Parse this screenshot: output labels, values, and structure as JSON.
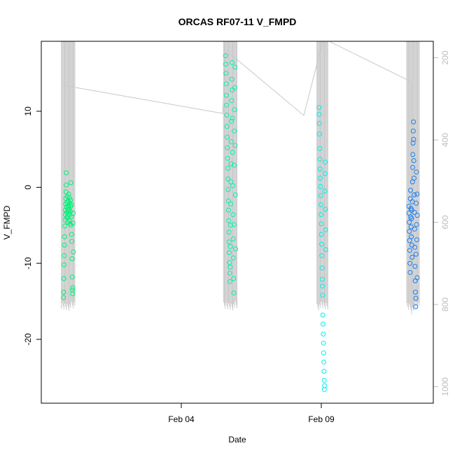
{
  "chart_data": {
    "type": "scatter",
    "title": "ORCAS RF07-11 V_FMPD",
    "xlabel": "Date",
    "ylabel": "V_FMPD",
    "x_range": [
      "2016-01-30",
      "2016-02-13"
    ],
    "ylim": [
      -28.4,
      19.2
    ],
    "y_right_lim": [
      1040,
      160
    ],
    "x_ticks": [
      {
        "date": "2016-02-04",
        "label": "Feb 04"
      },
      {
        "date": "2016-02-09",
        "label": "Feb 09"
      }
    ],
    "y_ticks": [
      -20,
      -10,
      0,
      10
    ],
    "y_right_ticks": [
      200,
      400,
      600,
      800,
      1000
    ],
    "grid": false,
    "background_trace_color": "#c8c8c8",
    "series": [
      {
        "color": "#00f07a",
        "points": [
          [
            "2016-01-30T19:00",
            -14.5
          ],
          [
            "2016-01-30T19:10",
            -13.8
          ],
          [
            "2016-01-30T19:20",
            -12.0
          ],
          [
            "2016-01-30T19:30",
            -10.2
          ],
          [
            "2016-01-30T19:40",
            -9.0
          ],
          [
            "2016-01-30T19:50",
            -7.6
          ],
          [
            "2016-01-30T20:00",
            -6.5
          ],
          [
            "2016-01-30T20:10",
            -5.1
          ],
          [
            "2016-01-30T20:20",
            -4.3
          ],
          [
            "2016-01-30T20:30",
            -3.6
          ],
          [
            "2016-01-30T20:40",
            -3.0
          ],
          [
            "2016-01-30T20:50",
            -2.2
          ],
          [
            "2016-01-30T21:00",
            -1.5
          ],
          [
            "2016-01-30T21:10",
            -0.6
          ],
          [
            "2016-01-30T21:20",
            0.3
          ],
          [
            "2016-01-30T21:30",
            1.9
          ],
          [
            "2016-01-30T21:40",
            -2.6
          ],
          [
            "2016-01-30T21:50",
            -3.3
          ],
          [
            "2016-01-30T22:00",
            -4.0
          ],
          [
            "2016-01-30T22:10",
            -2.0
          ],
          [
            "2016-01-30T22:20",
            -1.2
          ],
          [
            "2016-01-30T22:30",
            -3.8
          ],
          [
            "2016-01-30T22:40",
            -4.6
          ],
          [
            "2016-01-30T22:50",
            -2.8
          ],
          [
            "2016-01-30T23:00",
            -1.8
          ],
          [
            "2016-01-30T23:10",
            -3.1
          ],
          [
            "2016-01-30T23:20",
            -2.4
          ],
          [
            "2016-01-30T23:30",
            -0.9
          ],
          [
            "2016-01-30T23:40",
            -3.5
          ],
          [
            "2016-01-30T23:50",
            -4.4
          ],
          [
            "2016-01-31T00:00",
            -2.9
          ],
          [
            "2016-01-31T00:10",
            -1.4
          ],
          [
            "2016-01-31T00:20",
            -3.7
          ],
          [
            "2016-01-31T00:30",
            -2.1
          ],
          [
            "2016-01-31T00:40",
            -4.8
          ],
          [
            "2016-01-31T00:50",
            -3.2
          ],
          [
            "2016-01-31T01:00",
            -1.7
          ],
          [
            "2016-01-31T01:10",
            -2.5
          ],
          [
            "2016-01-31T01:20",
            0.6
          ],
          [
            "2016-01-31T01:30",
            -5.0
          ],
          [
            "2016-01-31T01:40",
            -3.9
          ],
          [
            "2016-01-31T01:50",
            -2.3
          ],
          [
            "2016-01-31T02:00",
            -6.2
          ],
          [
            "2016-01-31T02:10",
            -7.1
          ],
          [
            "2016-01-31T02:20",
            -9.4
          ],
          [
            "2016-01-31T02:30",
            -11.8
          ],
          [
            "2016-01-31T02:40",
            -13.5
          ],
          [
            "2016-01-31T02:50",
            -14.0
          ],
          [
            "2016-01-31T03:00",
            -13.2
          ],
          [
            "2016-01-31T03:10",
            -4.7
          ],
          [
            "2016-01-31T03:20",
            -3.4
          ],
          [
            "2016-01-31T03:30",
            -8.5
          ]
        ]
      },
      {
        "color": "#00f2b0",
        "points": [
          [
            "2016-02-05T14:00",
            17.3
          ],
          [
            "2016-02-05T14:10",
            16.2
          ],
          [
            "2016-02-05T14:20",
            15.0
          ],
          [
            "2016-02-05T14:30",
            13.6
          ],
          [
            "2016-02-05T14:40",
            12.1
          ],
          [
            "2016-02-05T14:50",
            10.8
          ],
          [
            "2016-02-05T15:00",
            9.5
          ],
          [
            "2016-02-05T15:10",
            8.0
          ],
          [
            "2016-02-05T15:20",
            6.6
          ],
          [
            "2016-02-05T15:30",
            5.2
          ],
          [
            "2016-02-05T15:40",
            3.8
          ],
          [
            "2016-02-05T15:50",
            2.5
          ],
          [
            "2016-02-05T16:00",
            1.1
          ],
          [
            "2016-02-05T16:10",
            -0.3
          ],
          [
            "2016-02-05T16:20",
            -1.8
          ],
          [
            "2016-02-05T16:30",
            -3.0
          ],
          [
            "2016-02-05T16:40",
            -4.4
          ],
          [
            "2016-02-05T16:50",
            -5.9
          ],
          [
            "2016-02-05T17:00",
            -7.2
          ],
          [
            "2016-02-05T17:10",
            -8.6
          ],
          [
            "2016-02-05T17:20",
            -9.9
          ],
          [
            "2016-02-05T17:30",
            -11.3
          ],
          [
            "2016-02-05T17:40",
            -12.4
          ],
          [
            "2016-02-05T17:50",
            -10.5
          ],
          [
            "2016-02-05T18:00",
            -7.8
          ],
          [
            "2016-02-05T18:10",
            -5.0
          ],
          [
            "2016-02-05T18:20",
            -2.2
          ],
          [
            "2016-02-05T18:30",
            0.7
          ],
          [
            "2016-02-05T18:40",
            3.1
          ],
          [
            "2016-02-05T18:50",
            6.0
          ],
          [
            "2016-02-05T19:00",
            8.7
          ],
          [
            "2016-02-05T19:10",
            11.4
          ],
          [
            "2016-02-05T19:20",
            14.2
          ],
          [
            "2016-02-05T19:30",
            16.4
          ],
          [
            "2016-02-05T19:40",
            12.8
          ],
          [
            "2016-02-05T19:50",
            9.1
          ],
          [
            "2016-02-05T20:00",
            4.6
          ],
          [
            "2016-02-05T20:10",
            0.2
          ],
          [
            "2016-02-05T20:20",
            -3.6
          ],
          [
            "2016-02-05T20:30",
            -6.8
          ],
          [
            "2016-02-05T20:40",
            -9.3
          ],
          [
            "2016-02-05T20:50",
            -12.0
          ],
          [
            "2016-02-05T21:00",
            -13.9
          ],
          [
            "2016-02-05T21:10",
            -4.9
          ],
          [
            "2016-02-05T21:20",
            2.9
          ],
          [
            "2016-02-05T21:30",
            7.4
          ],
          [
            "2016-02-05T21:40",
            10.2
          ],
          [
            "2016-02-05T21:50",
            13.1
          ],
          [
            "2016-02-05T22:00",
            15.8
          ],
          [
            "2016-02-05T22:10",
            5.5
          ],
          [
            "2016-02-05T22:20",
            -1.0
          ],
          [
            "2016-02-05T22:30",
            -8.1
          ]
        ]
      },
      {
        "color": "#00eef0",
        "points": [
          [
            "2016-02-08T22:00",
            10.5
          ],
          [
            "2016-02-08T22:10",
            9.6
          ],
          [
            "2016-02-08T22:20",
            8.4
          ],
          [
            "2016-02-08T22:30",
            7.0
          ],
          [
            "2016-02-08T22:40",
            5.1
          ],
          [
            "2016-02-08T22:50",
            3.7
          ],
          [
            "2016-02-08T23:00",
            2.4
          ],
          [
            "2016-02-08T23:10",
            1.2
          ],
          [
            "2016-02-08T23:20",
            0.1
          ],
          [
            "2016-02-08T23:30",
            -1.1
          ],
          [
            "2016-02-08T23:40",
            -2.3
          ],
          [
            "2016-02-08T23:50",
            -3.6
          ],
          [
            "2016-02-09T00:00",
            -4.8
          ],
          [
            "2016-02-09T00:10",
            -6.2
          ],
          [
            "2016-02-09T00:20",
            -7.5
          ],
          [
            "2016-02-09T00:30",
            -9.0
          ],
          [
            "2016-02-09T00:40",
            -10.6
          ],
          [
            "2016-02-09T00:50",
            -12.1
          ],
          [
            "2016-02-09T01:00",
            -13.0
          ],
          [
            "2016-02-09T01:10",
            -14.2
          ],
          [
            "2016-02-09T01:20",
            -16.8
          ],
          [
            "2016-02-09T01:30",
            -18.0
          ],
          [
            "2016-02-09T01:40",
            -19.3
          ],
          [
            "2016-02-09T01:50",
            -20.5
          ],
          [
            "2016-02-09T02:00",
            -21.8
          ],
          [
            "2016-02-09T02:10",
            -23.0
          ],
          [
            "2016-02-09T02:20",
            -24.2
          ],
          [
            "2016-02-09T02:30",
            -25.4
          ],
          [
            "2016-02-09T02:40",
            -26.6
          ],
          [
            "2016-02-09T02:50",
            -26.1
          ],
          [
            "2016-02-09T03:00",
            -0.5
          ],
          [
            "2016-02-09T03:10",
            1.8
          ],
          [
            "2016-02-09T03:20",
            3.3
          ],
          [
            "2016-02-09T03:30",
            -2.9
          ],
          [
            "2016-02-09T03:40",
            -5.6
          ],
          [
            "2016-02-09T03:50",
            -8.2
          ]
        ]
      },
      {
        "color": "#1a7ef0",
        "points": [
          [
            "2016-02-12T03:00",
            -2.5
          ],
          [
            "2016-02-12T03:10",
            -3.4
          ],
          [
            "2016-02-12T03:20",
            -4.6
          ],
          [
            "2016-02-12T03:30",
            -5.8
          ],
          [
            "2016-02-12T03:40",
            -7.0
          ],
          [
            "2016-02-12T03:50",
            -8.3
          ],
          [
            "2016-02-12T04:00",
            -10.0
          ],
          [
            "2016-02-12T04:10",
            -11.2
          ],
          [
            "2016-02-12T04:20",
            -1.5
          ],
          [
            "2016-02-12T04:30",
            -0.4
          ],
          [
            "2016-02-12T04:40",
            -3.9
          ],
          [
            "2016-02-12T04:50",
            -2.8
          ],
          [
            "2016-02-12T05:00",
            -5.2
          ],
          [
            "2016-02-12T05:10",
            -6.5
          ],
          [
            "2016-02-12T05:20",
            -4.1
          ],
          [
            "2016-02-12T05:30",
            -3.0
          ],
          [
            "2016-02-12T05:40",
            -7.6
          ],
          [
            "2016-02-12T05:50",
            -9.2
          ],
          [
            "2016-02-12T06:00",
            -1.9
          ],
          [
            "2016-02-12T06:10",
            0.7
          ],
          [
            "2016-02-12T06:20",
            2.6
          ],
          [
            "2016-02-12T06:30",
            4.3
          ],
          [
            "2016-02-12T06:40",
            5.8
          ],
          [
            "2016-02-12T06:50",
            7.4
          ],
          [
            "2016-02-12T07:00",
            8.6
          ],
          [
            "2016-02-12T07:10",
            6.3
          ],
          [
            "2016-02-12T07:20",
            3.5
          ],
          [
            "2016-02-12T07:30",
            1.2
          ],
          [
            "2016-02-12T07:40",
            -1.0
          ],
          [
            "2016-02-12T07:50",
            -3.3
          ],
          [
            "2016-02-12T08:00",
            -5.5
          ],
          [
            "2016-02-12T08:10",
            -7.9
          ],
          [
            "2016-02-12T08:20",
            -10.4
          ],
          [
            "2016-02-12T08:30",
            -12.3
          ],
          [
            "2016-02-12T08:40",
            -13.8
          ],
          [
            "2016-02-12T08:50",
            -15.7
          ],
          [
            "2016-02-12T09:00",
            -14.6
          ],
          [
            "2016-02-12T09:10",
            -8.8
          ],
          [
            "2016-02-12T09:20",
            -2.1
          ],
          [
            "2016-02-12T09:30",
            2.0
          ],
          [
            "2016-02-12T09:40",
            -4.9
          ],
          [
            "2016-02-12T09:50",
            -6.9
          ],
          [
            "2016-02-12T10:00",
            -0.9
          ],
          [
            "2016-02-12T10:10",
            -11.9
          ],
          [
            "2016-02-12T10:20",
            -3.7
          ]
        ]
      }
    ]
  }
}
